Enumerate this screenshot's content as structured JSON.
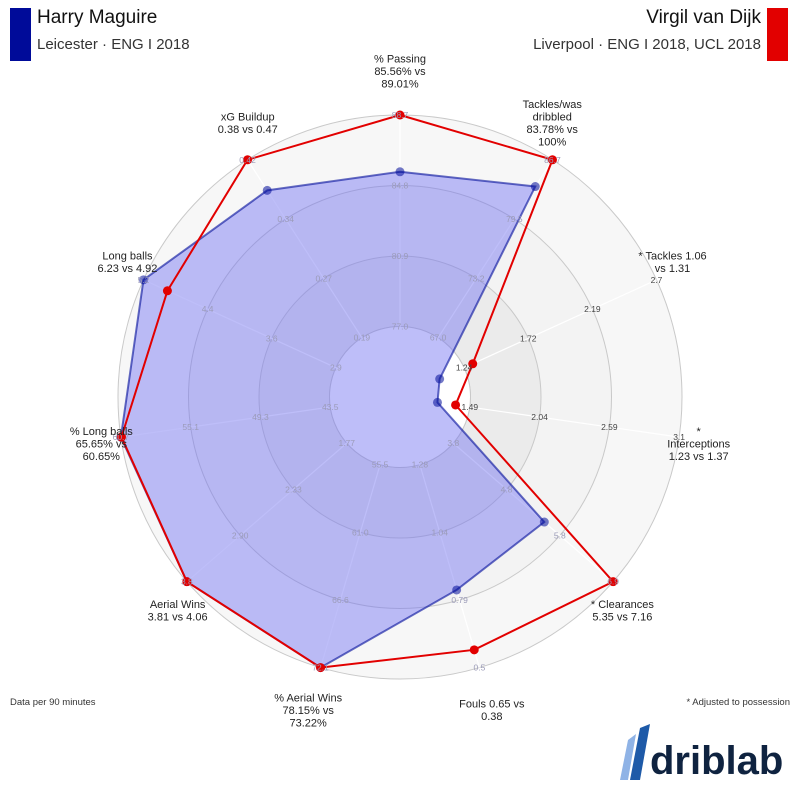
{
  "header": {
    "left": {
      "name": "Harry Maguire",
      "sub": "Leicester · ENG I 2018",
      "color": "#000b99"
    },
    "right": {
      "name": "Virgil van Dijk",
      "sub": "Liverpool · ENG I 2018, UCL 2018",
      "color": "#e20000"
    }
  },
  "notes": {
    "per90": "Data per 90 minutes",
    "adjusted": "* Adjusted to possession"
  },
  "brand": {
    "name": "driblab"
  },
  "chart_data": {
    "type": "radar",
    "rings": 5,
    "series": [
      {
        "name": "Harry Maguire",
        "color": "#000b99",
        "fill": "#6f6ff2",
        "values": [
          85.56,
          83.78,
          1.06,
          1.23,
          5.35,
          0.65,
          78.15,
          3.81,
          65.65,
          6.23,
          0.38
        ]
      },
      {
        "name": "Virgil van Dijk",
        "color": "#e20000",
        "fill": "#e20000",
        "values": [
          89.01,
          100,
          1.31,
          1.37,
          7.16,
          0.38,
          73.22,
          4.06,
          60.65,
          4.92,
          0.47
        ]
      }
    ],
    "axes": [
      {
        "label": "% Passing\n85.56% vs\n89.01%",
        "min": 73.1,
        "max": 88.7,
        "ticks": [
          "77.0",
          "80.9",
          "84.8",
          "88.7"
        ]
      },
      {
        "label": "Tackles/was\ndribbled\n83.78% vs\n100%",
        "min": 60.8,
        "max": 86.7,
        "ticks": [
          "67.0",
          "73.2",
          "79.5",
          "86.7"
        ]
      },
      {
        "label": "* Tackles 1.06\nvs 1.31",
        "min": 0.76,
        "max": 2.7,
        "ticks": [
          "1.24",
          "1.72",
          "2.19",
          "2.7"
        ]
      },
      {
        "label": "*\nInterceptions\n1.23 vs 1.37",
        "min": 0.94,
        "max": 3.1,
        "ticks": [
          "1.49",
          "2.04",
          "2.59",
          "3.1"
        ]
      },
      {
        "label": "* Clearances\n5.35 vs 7.16",
        "min": 2.1,
        "max": 6.9,
        "ticks": [
          "3.8",
          "4.8",
          "5.8",
          "6.9"
        ]
      },
      {
        "label": "Fouls 0.65 vs\n0.38",
        "min": 1.52,
        "max": 0.3,
        "ticks": [
          "1.28",
          "1.04",
          "0.79",
          "0.5"
        ]
      },
      {
        "label": "% Aerial Wins\n78.15% vs\n73.22%",
        "min": 50.0,
        "max": 72.1,
        "ticks": [
          "55.5",
          "61.0",
          "66.6",
          "72.1"
        ]
      },
      {
        "label": "Aerial Wins\n3.81 vs 4.06",
        "min": 1.2,
        "max": 3.8,
        "ticks": [
          "1.77",
          "2.33",
          "2.90",
          "3.8"
        ]
      },
      {
        "label": "% Long balls\n65.65% vs\n60.65%",
        "min": 37.7,
        "max": 60.7,
        "ticks": [
          "43.5",
          "49.3",
          "55.1",
          "60.7"
        ]
      },
      {
        "label": "Long balls\n6.23 vs 4.92",
        "min": 2.2,
        "max": 5.2,
        "ticks": [
          "2.9",
          "3.6",
          "4.4",
          "5.2"
        ]
      },
      {
        "label": "xG Buildup\n0.38 vs 0.47",
        "min": 0.11,
        "max": 0.42,
        "ticks": [
          "0.19",
          "0.27",
          "0.34",
          "0.42"
        ]
      }
    ]
  }
}
